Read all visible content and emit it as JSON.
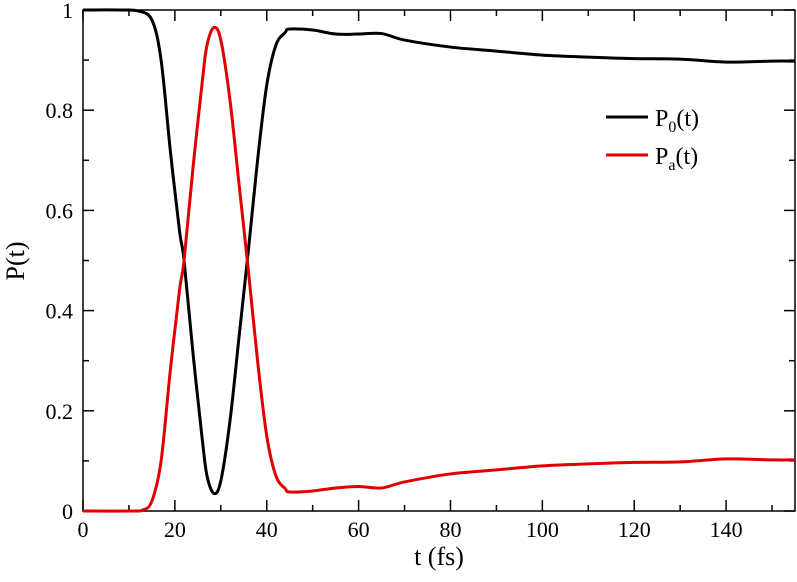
{
  "chart_data": {
    "type": "line",
    "xlabel": "t (fs)",
    "ylabel": "P(t)",
    "xlim": [
      0,
      155
    ],
    "ylim": [
      0,
      1
    ],
    "x_ticks": [
      0,
      20,
      40,
      60,
      80,
      100,
      120,
      140
    ],
    "x_tick_labels": [
      "0",
      "20",
      "40",
      "60",
      "80",
      "100",
      "120",
      "140"
    ],
    "y_ticks": [
      0,
      0.2,
      0.4,
      0.6,
      0.8,
      1
    ],
    "y_tick_labels": [
      "0",
      "0.2",
      "0.4",
      "0.6",
      "0.8",
      "1"
    ],
    "grid": false,
    "legend": {
      "placement": "top-right",
      "entries": [
        {
          "label_main": "P",
          "label_sub": "0",
          "label_tail": "(t)",
          "color": "#000000"
        },
        {
          "label_main": "P",
          "label_sub": "a",
          "label_tail": "(t)",
          "color": "#e00000"
        }
      ]
    },
    "series": [
      {
        "color": "#000000",
        "x": [
          0,
          8,
          12,
          15,
          17,
          19,
          21,
          22,
          24,
          26,
          27,
          28.5,
          30,
          32,
          34,
          36,
          38,
          40,
          42,
          44,
          45,
          50,
          55,
          60,
          65,
          70,
          80,
          90,
          100,
          110,
          120,
          130,
          140,
          150,
          155
        ],
        "y": [
          1.0,
          1.0,
          0.998,
          0.98,
          0.9,
          0.72,
          0.56,
          0.5,
          0.31,
          0.14,
          0.07,
          0.035,
          0.06,
          0.18,
          0.35,
          0.52,
          0.7,
          0.85,
          0.93,
          0.955,
          0.962,
          0.96,
          0.952,
          0.952,
          0.953,
          0.94,
          0.926,
          0.918,
          0.91,
          0.906,
          0.903,
          0.902,
          0.896,
          0.898,
          0.898
        ]
      },
      {
        "color": "#e00000",
        "x": [
          0,
          10,
          13,
          15,
          17,
          19,
          21,
          22,
          24,
          26,
          27,
          28.5,
          30,
          32,
          34,
          36,
          38,
          40,
          42,
          44,
          45,
          50,
          55,
          60,
          65,
          70,
          80,
          90,
          100,
          110,
          120,
          130,
          140,
          150,
          155
        ],
        "y": [
          0.0,
          0.0,
          0.002,
          0.02,
          0.1,
          0.28,
          0.44,
          0.5,
          0.69,
          0.86,
          0.93,
          0.965,
          0.94,
          0.82,
          0.65,
          0.48,
          0.3,
          0.15,
          0.07,
          0.045,
          0.038,
          0.04,
          0.046,
          0.049,
          0.046,
          0.058,
          0.074,
          0.082,
          0.09,
          0.094,
          0.097,
          0.098,
          0.104,
          0.102,
          0.102
        ]
      }
    ]
  }
}
